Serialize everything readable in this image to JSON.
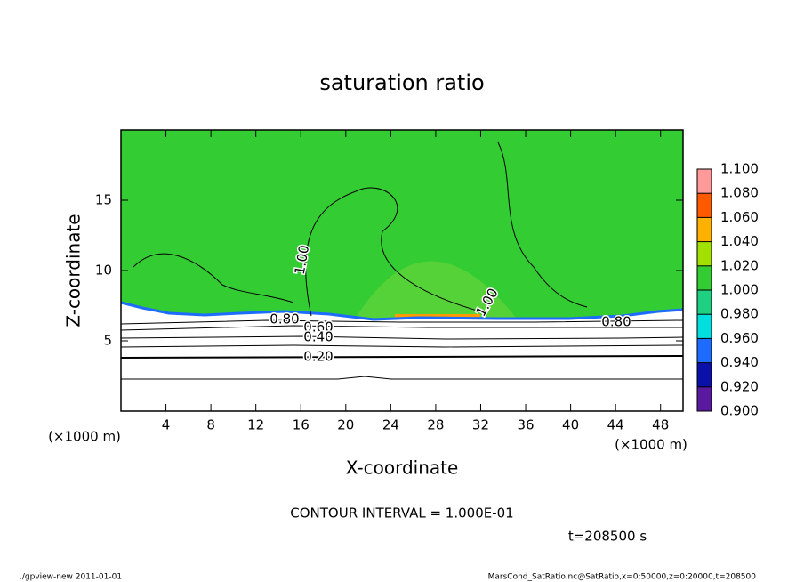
{
  "chart_data": {
    "type": "contour",
    "title": "saturation ratio",
    "xlabel": "X-coordinate",
    "ylabel": "Z-coordinate",
    "x_unit": "(×1000 m)",
    "xlim": [
      0,
      50
    ],
    "xticks": [
      4,
      8,
      12,
      16,
      20,
      24,
      28,
      32,
      36,
      40,
      44,
      48
    ],
    "ylim": [
      0,
      20
    ],
    "yticks": [
      5,
      10,
      15
    ],
    "colorbar": {
      "lim": [
        0.9,
        1.1
      ],
      "ticks": [
        {
          "value": 0.9,
          "label": "0.900"
        },
        {
          "value": 0.92,
          "label": "0.920"
        },
        {
          "value": 0.94,
          "label": "0.940"
        },
        {
          "value": 0.96,
          "label": "0.960"
        },
        {
          "value": 0.98,
          "label": "0.980"
        },
        {
          "value": 1.0,
          "label": "1.000"
        },
        {
          "value": 1.02,
          "label": "1.020"
        },
        {
          "value": 1.04,
          "label": "1.040"
        },
        {
          "value": 1.06,
          "label": "1.060"
        },
        {
          "value": 1.08,
          "label": "1.080"
        },
        {
          "value": 1.1,
          "label": "1.100"
        }
      ],
      "colors": [
        "#5a1aa0",
        "#0a10a8",
        "#1e6cff",
        "#00dede",
        "#1ed080",
        "#33cc33",
        "#a2e000",
        "#ffb000",
        "#ff5a00",
        "#ff9a9a"
      ]
    },
    "contour_labels": [
      "1.00",
      "1.00",
      "0.80",
      "0.60",
      "0.40",
      "0.20",
      "0.80"
    ],
    "contour_interval": "CONTOUR INTERVAL = 1.000E-01",
    "time_label": "t=208500 s",
    "footer_left": "./gpview-new  2011-01-01",
    "footer_right": "MarsCond_SatRatio.nc@SatRatio,x=0:50000,z=0:20000,t=208500"
  }
}
